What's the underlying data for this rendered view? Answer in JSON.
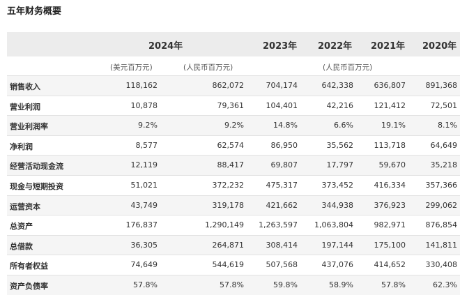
{
  "title": "五年财务概要",
  "header": {
    "y2024": "2024年",
    "y2023": "2023年",
    "y2022": "2022年",
    "y2021": "2021年",
    "y2020": "2020年"
  },
  "units": {
    "usd": "(美元百万元)",
    "rmb_2024": "(人民币百万元)",
    "rmb_hist": "(人民币百万元)"
  },
  "rows": [
    {
      "label": "销售收入",
      "values": [
        "118,162",
        "862,072",
        "704,174",
        "642,338",
        "636,807",
        "891,368"
      ]
    },
    {
      "label": "营业利润",
      "values": [
        "10,878",
        "79,361",
        "104,401",
        "42,216",
        "121,412",
        "72,501"
      ]
    },
    {
      "label": "营业利润率",
      "values": [
        "9.2%",
        "9.2%",
        "14.8%",
        "6.6%",
        "19.1%",
        "8.1%"
      ]
    },
    {
      "label": "净利润",
      "values": [
        "8,577",
        "62,574",
        "86,950",
        "35,562",
        "113,718",
        "64,649"
      ]
    },
    {
      "label": "经营活动现金流",
      "values": [
        "12,119",
        "88,417",
        "69,807",
        "17,797",
        "59,670",
        "35,218"
      ]
    },
    {
      "label": "现金与短期投资",
      "values": [
        "51,021",
        "372,232",
        "475,317",
        "373,452",
        "416,334",
        "357,366"
      ]
    },
    {
      "label": "运营资本",
      "values": [
        "43,749",
        "319,178",
        "421,662",
        "344,938",
        "376,923",
        "299,062"
      ]
    },
    {
      "label": "总资产",
      "values": [
        "176,837",
        "1,290,149",
        "1,263,597",
        "1,063,804",
        "982,971",
        "876,854"
      ]
    },
    {
      "label": "总借款",
      "values": [
        "36,305",
        "264,871",
        "308,414",
        "197,144",
        "175,100",
        "141,811"
      ]
    },
    {
      "label": "所有者权益",
      "values": [
        "74,649",
        "544,619",
        "507,568",
        "437,076",
        "414,652",
        "330,408"
      ]
    },
    {
      "label": "资产负债率",
      "values": [
        "57.8%",
        "57.8%",
        "59.8%",
        "58.9%",
        "57.8%",
        "62.3%"
      ]
    }
  ]
}
